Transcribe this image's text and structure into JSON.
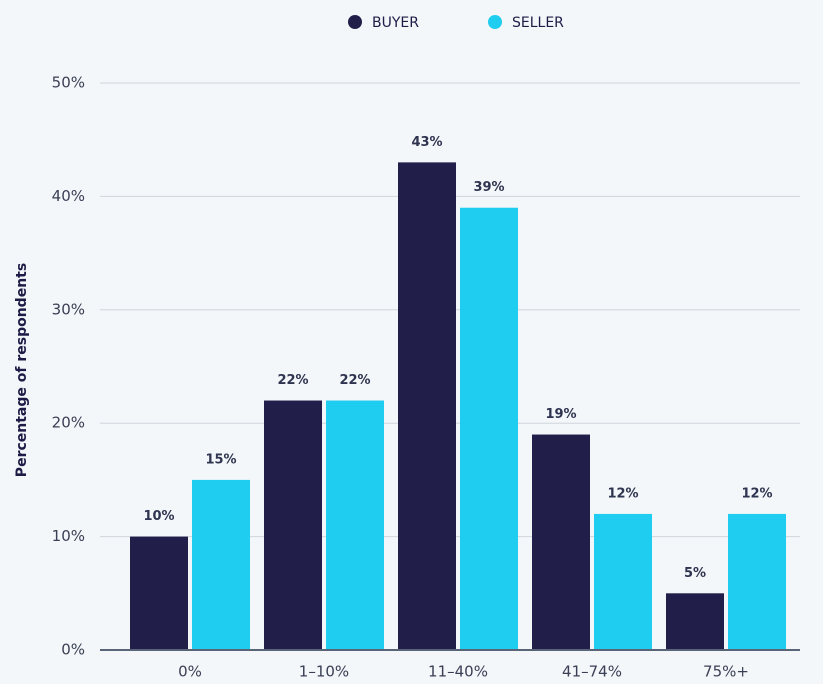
{
  "chart_data": {
    "type": "bar",
    "y_label": "Percentage of respondents",
    "categories": [
      "0%",
      "1–10%",
      "11–40%",
      "41–74%",
      "75%+"
    ],
    "series": [
      {
        "name": "BUYER",
        "color": "#211f4a",
        "values": [
          10,
          22,
          43,
          19,
          5
        ],
        "value_labels": [
          "10%",
          "22%",
          "43%",
          "19%",
          "5%"
        ]
      },
      {
        "name": "SELLER",
        "color": "#1fcdf0",
        "values": [
          15,
          22,
          39,
          12,
          12
        ],
        "value_labels": [
          "15%",
          "22%",
          "39%",
          "12%",
          "12%"
        ]
      }
    ],
    "ylim": [
      0,
      50
    ],
    "yticks": [
      {
        "value": 0,
        "label": "0%"
      },
      {
        "value": 10,
        "label": "10%"
      },
      {
        "value": 20,
        "label": "20%"
      },
      {
        "value": 30,
        "label": "30%"
      },
      {
        "value": 40,
        "label": "40%"
      },
      {
        "value": 50,
        "label": "50%"
      }
    ],
    "grid": true,
    "legend": "top"
  }
}
